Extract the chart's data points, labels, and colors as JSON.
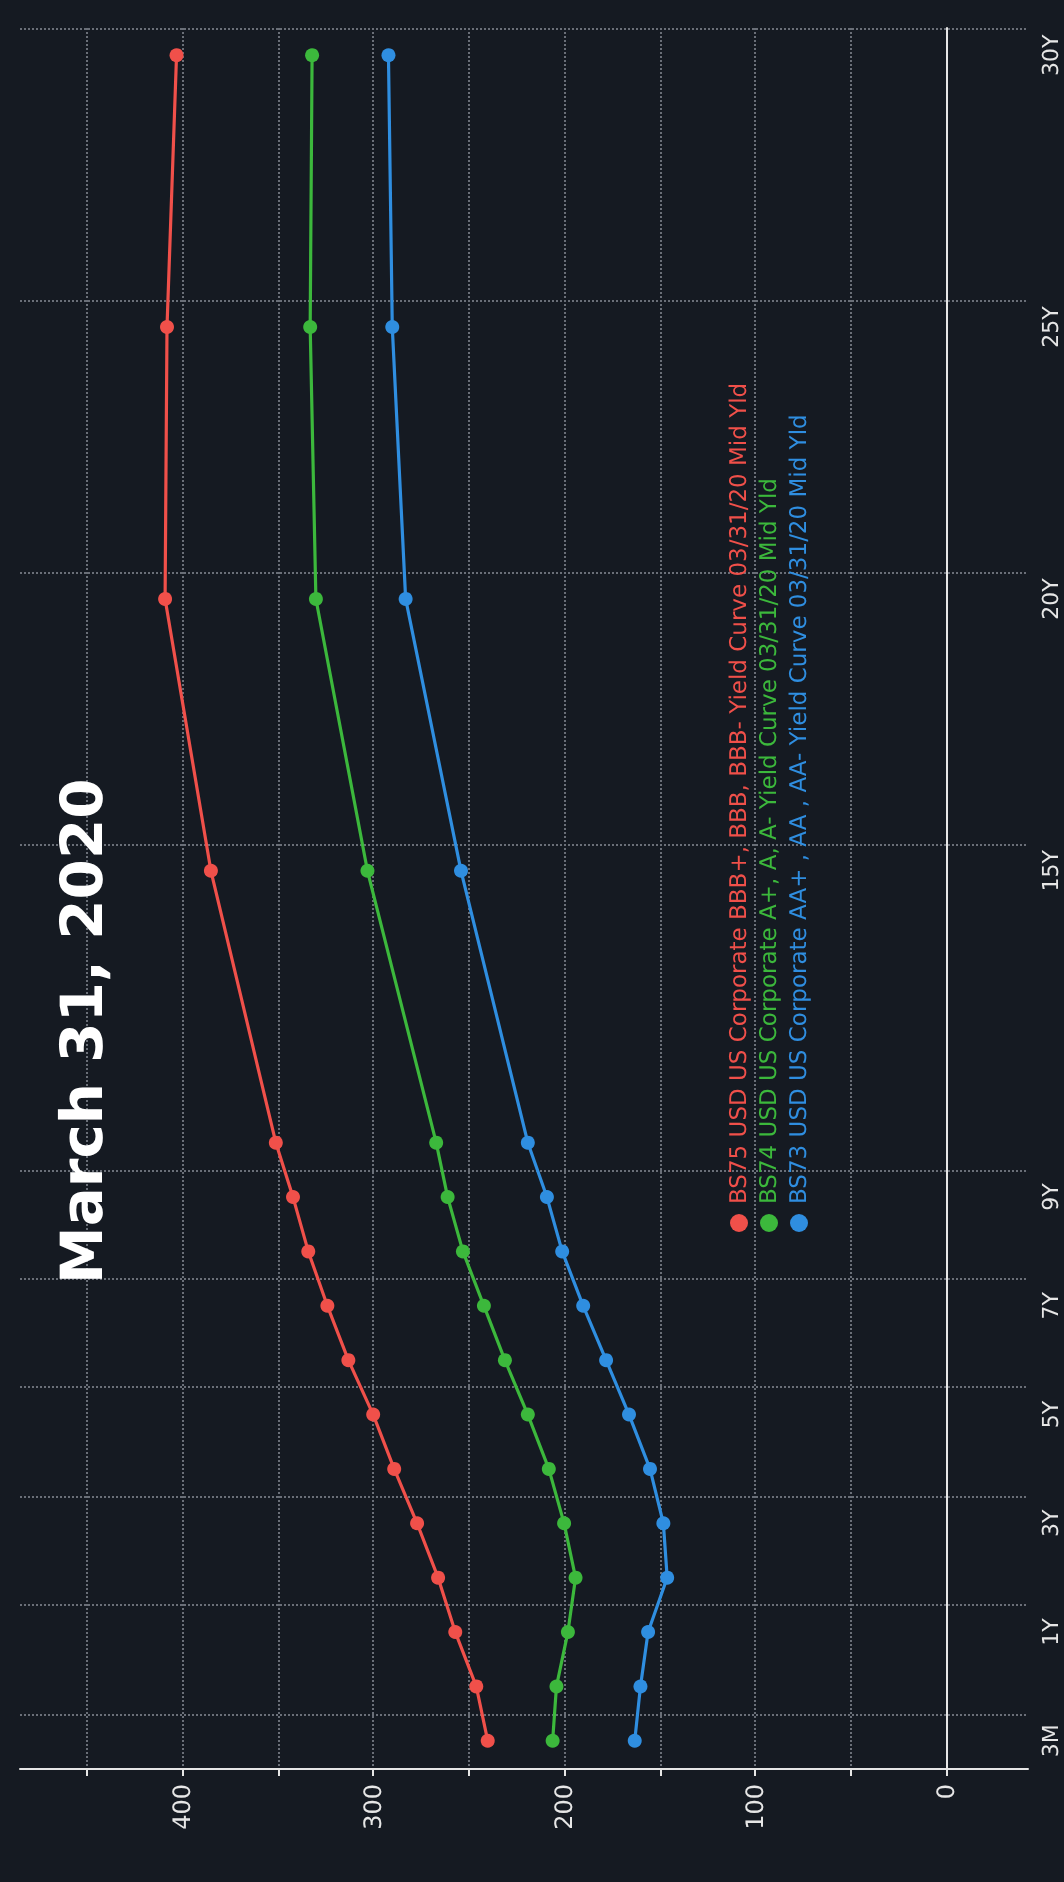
{
  "chart_data": {
    "type": "line",
    "title": "March 31, 2020",
    "orientation": "horizontal",
    "categories": [
      "30Y",
      null,
      null,
      null,
      null,
      "25Y",
      null,
      null,
      null,
      null,
      "20Y",
      null,
      null,
      null,
      null,
      "15Y",
      null,
      null,
      null,
      null,
      null,
      "9Y",
      null,
      "7Y",
      null,
      "5Y",
      null,
      "3Y",
      null,
      "1Y",
      null,
      "3M"
    ],
    "series": [
      {
        "name": "BS75 USD US Corporate BBB+, BBB, BBB- Yield Curve 03/31/20 Mid Yld",
        "color": "#f0504a",
        "values": [
          403,
          null,
          null,
          null,
          null,
          408,
          null,
          null,
          null,
          null,
          409,
          null,
          null,
          null,
          null,
          385,
          null,
          null,
          null,
          null,
          351,
          342,
          334,
          324,
          313,
          300,
          289,
          277,
          266,
          257,
          246,
          240
        ]
      },
      {
        "name": "BS74 USD US Corporate A+, A, A- Yield Curve 03/31/20 Mid Yld",
        "color": "#3cb83c",
        "values": [
          332,
          null,
          null,
          null,
          null,
          333,
          null,
          null,
          null,
          null,
          330,
          null,
          null,
          null,
          null,
          303,
          null,
          null,
          null,
          null,
          267,
          261,
          253,
          242,
          231,
          219,
          208,
          200,
          194,
          198,
          204,
          206
        ]
      },
      {
        "name": "BS73 USD US Corporate AA+ , AA , AA- Yield Curve 03/31/20 Mid Yld",
        "color": "#2f8ee0",
        "values": [
          292,
          null,
          null,
          null,
          null,
          290,
          null,
          null,
          null,
          null,
          283,
          null,
          null,
          null,
          null,
          254,
          null,
          null,
          null,
          null,
          219,
          209,
          201,
          190,
          178,
          166,
          155,
          148,
          146,
          156,
          160,
          163
        ]
      }
    ],
    "xlim": [
      485,
      -43
    ],
    "xticks": [
      {
        "value": 450,
        "label": null
      },
      400,
      {
        "value": 350,
        "label": null
      },
      300,
      {
        "value": 250,
        "label": null
      },
      200,
      {
        "value": 150,
        "label": null
      },
      100,
      {
        "value": 50,
        "label": null
      },
      0
    ],
    "grid": true,
    "legend": "right",
    "marker": "circle",
    "line_style": "solid"
  }
}
